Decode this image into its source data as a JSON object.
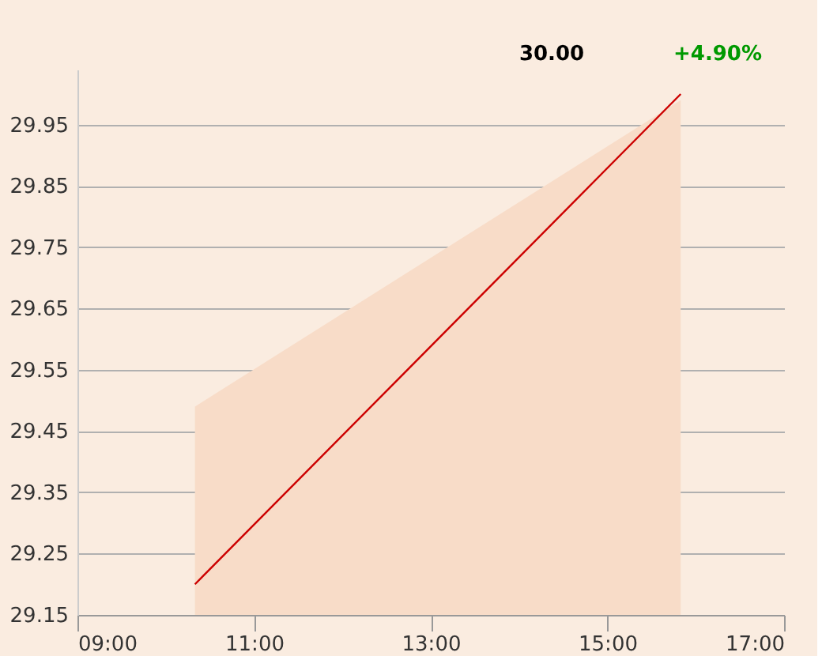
{
  "chart_data": {
    "type": "line",
    "annotations": [
      "30.00",
      "+4.90%"
    ],
    "x": [
      10.33,
      15.83
    ],
    "xlim": [
      9,
      17
    ],
    "xticks": [
      {
        "value": 9,
        "label": "09:00"
      },
      {
        "value": 11,
        "label": "11:00"
      },
      {
        "value": 13,
        "label": "13:00"
      },
      {
        "value": 15,
        "label": "15:00"
      },
      {
        "value": 17,
        "label": "17:00"
      }
    ],
    "ylim": [
      29.15,
      30.04
    ],
    "yticks": [
      29.15,
      29.25,
      29.35,
      29.45,
      29.55,
      29.65,
      29.75,
      29.85,
      29.95
    ],
    "grid": "y",
    "marker": "none",
    "line_style": "solid",
    "series": [
      {
        "type": "area",
        "color": "#f8dcc8",
        "values": [
          29.49,
          29.99
        ]
      },
      {
        "color": "#cc0000",
        "values": [
          29.2,
          30.0
        ]
      }
    ]
  }
}
